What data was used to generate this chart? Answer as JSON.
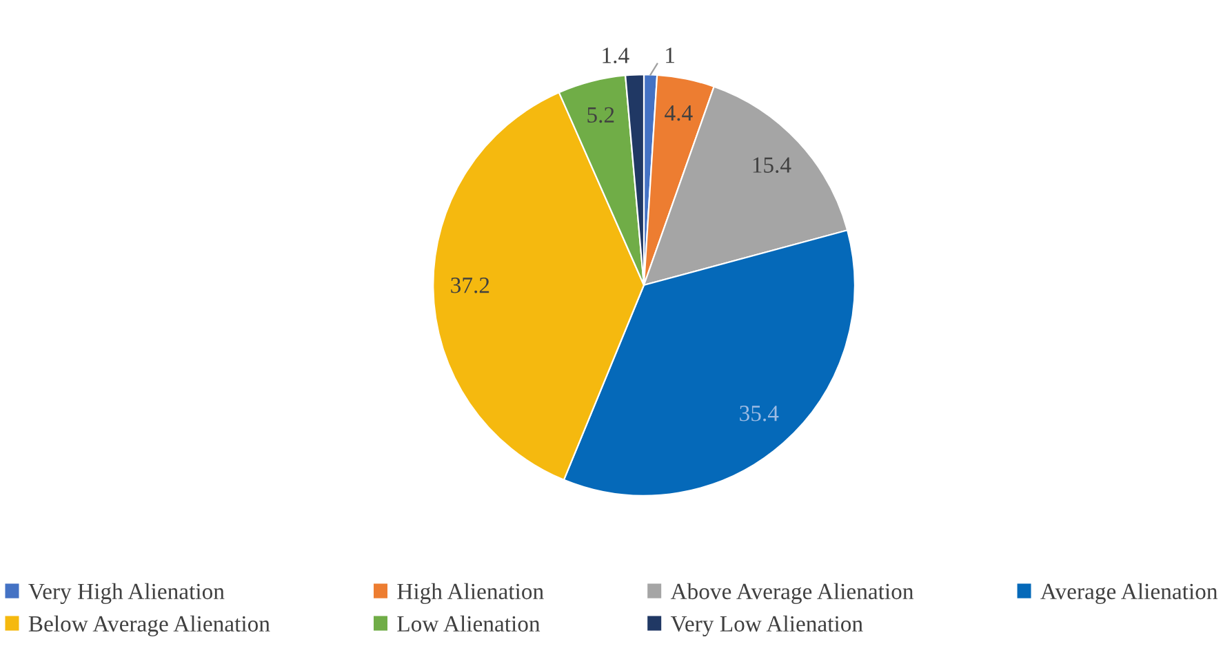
{
  "chart_data": {
    "type": "pie",
    "categories": [
      "Very High Alienation",
      "High Alienation",
      "Above Average Alienation",
      "Average Alienation",
      "Below Average Alienation",
      "Low Alienation",
      "Very Low Alienation"
    ],
    "values": [
      1,
      4.4,
      15.4,
      35.4,
      37.2,
      5.2,
      1.4
    ],
    "colors": [
      "#4472c4",
      "#ed7d31",
      "#a5a5a5",
      "#0569b9",
      "#f5b90f",
      "#70ad47",
      "#203864"
    ],
    "data_labels": true,
    "legend": "bottom"
  }
}
